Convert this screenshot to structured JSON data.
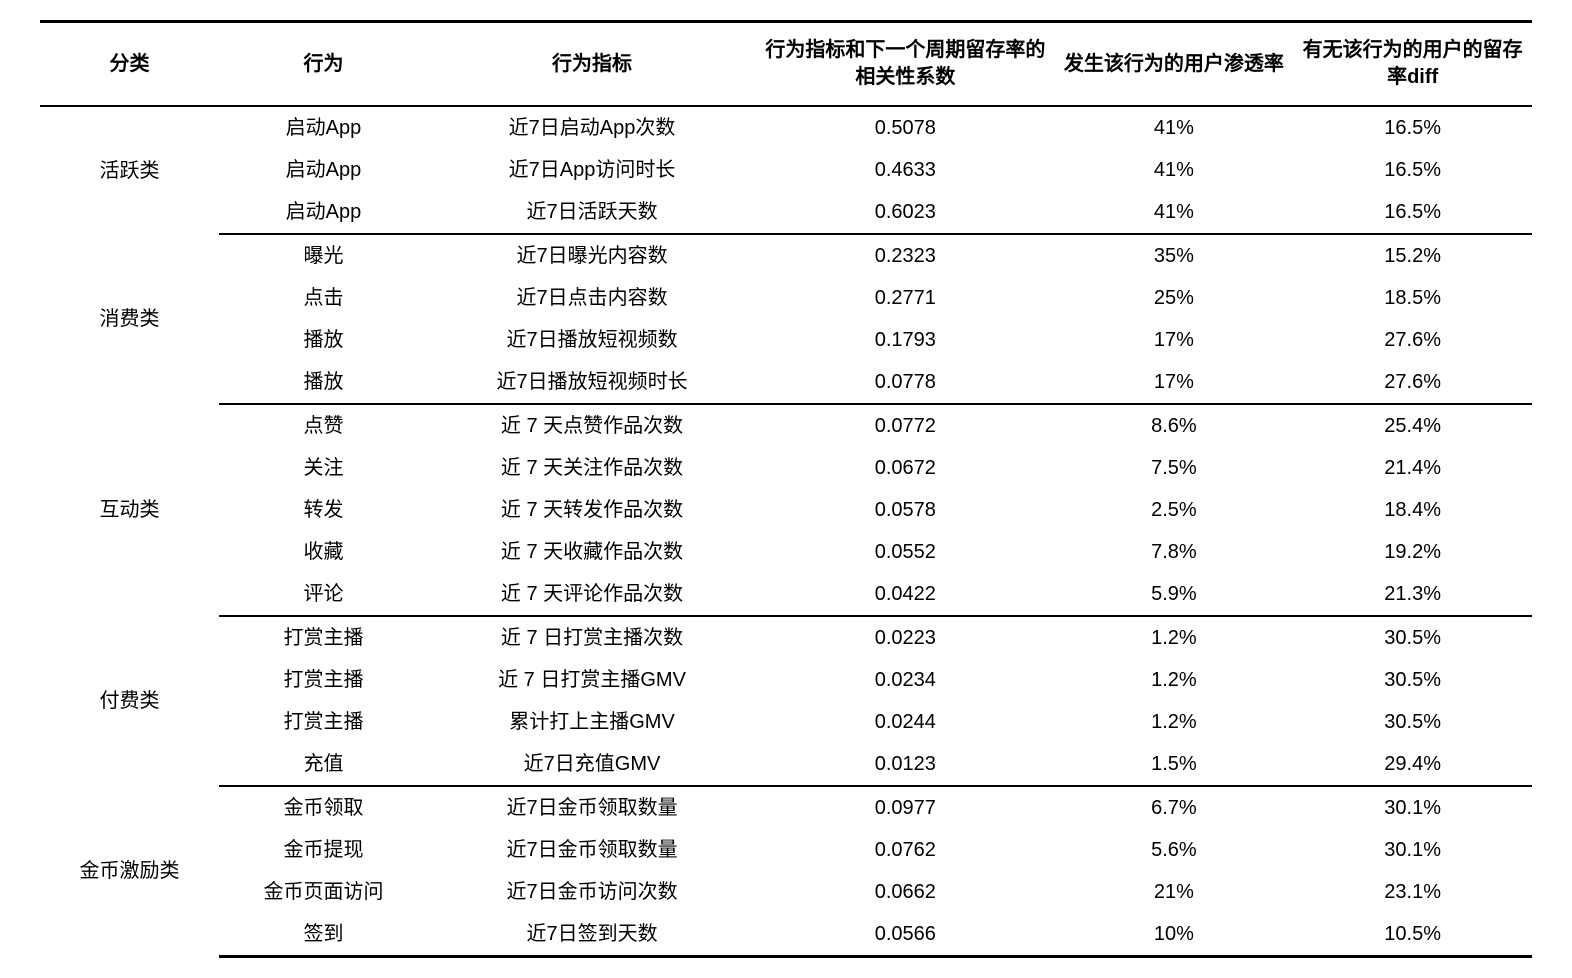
{
  "table": {
    "columns": [
      "分类",
      "行为",
      "行为指标",
      "行为指标和下一个周期留存率的相关性系数",
      "发生该行为的用户渗透率",
      "有无该行为的用户的留存率diff"
    ],
    "column_widths_pct": [
      12,
      14,
      22,
      20,
      16,
      16
    ],
    "header_fontsize_pt": 15,
    "body_fontsize_pt": 15,
    "border_color": "#000000",
    "background_color": "#ffffff",
    "text_color": "#000000",
    "groups": [
      {
        "category": "活跃类",
        "rows": [
          {
            "behavior": "启动App",
            "indicator": "近7日启动App次数",
            "corr": "0.5078",
            "penetration": "41%",
            "diff": "16.5%"
          },
          {
            "behavior": "启动App",
            "indicator": "近7日App访问时长",
            "corr": "0.4633",
            "penetration": "41%",
            "diff": "16.5%"
          },
          {
            "behavior": "启动App",
            "indicator": "近7日活跃天数",
            "corr": "0.6023",
            "penetration": "41%",
            "diff": "16.5%"
          }
        ]
      },
      {
        "category": "消费类",
        "rows": [
          {
            "behavior": "曝光",
            "indicator": "近7日曝光内容数",
            "corr": "0.2323",
            "penetration": "35%",
            "diff": "15.2%"
          },
          {
            "behavior": "点击",
            "indicator": "近7日点击内容数",
            "corr": "0.2771",
            "penetration": "25%",
            "diff": "18.5%"
          },
          {
            "behavior": "播放",
            "indicator": "近7日播放短视频数",
            "corr": "0.1793",
            "penetration": "17%",
            "diff": "27.6%"
          },
          {
            "behavior": "播放",
            "indicator": "近7日播放短视频时长",
            "corr": "0.0778",
            "penetration": "17%",
            "diff": "27.6%"
          }
        ]
      },
      {
        "category": "互动类",
        "rows": [
          {
            "behavior": "点赞",
            "indicator": "近 7 天点赞作品次数",
            "corr": "0.0772",
            "penetration": "8.6%",
            "diff": "25.4%"
          },
          {
            "behavior": "关注",
            "indicator": "近 7 天关注作品次数",
            "corr": "0.0672",
            "penetration": "7.5%",
            "diff": "21.4%"
          },
          {
            "behavior": "转发",
            "indicator": "近 7 天转发作品次数",
            "corr": "0.0578",
            "penetration": "2.5%",
            "diff": "18.4%"
          },
          {
            "behavior": "收藏",
            "indicator": "近 7 天收藏作品次数",
            "corr": "0.0552",
            "penetration": "7.8%",
            "diff": "19.2%"
          },
          {
            "behavior": "评论",
            "indicator": "近 7 天评论作品次数",
            "corr": "0.0422",
            "penetration": "5.9%",
            "diff": "21.3%"
          }
        ]
      },
      {
        "category": "付费类",
        "rows": [
          {
            "behavior": "打赏主播",
            "indicator": "近 7 日打赏主播次数",
            "corr": "0.0223",
            "penetration": "1.2%",
            "diff": "30.5%"
          },
          {
            "behavior": "打赏主播",
            "indicator": "近 7 日打赏主播GMV",
            "corr": "0.0234",
            "penetration": "1.2%",
            "diff": "30.5%"
          },
          {
            "behavior": "打赏主播",
            "indicator": "累计打上主播GMV",
            "corr": "0.0244",
            "penetration": "1.2%",
            "diff": "30.5%"
          },
          {
            "behavior": "充值",
            "indicator": "近7日充值GMV",
            "corr": "0.0123",
            "penetration": "1.5%",
            "diff": "29.4%"
          }
        ]
      },
      {
        "category": "金币激励类",
        "rows": [
          {
            "behavior": "金币领取",
            "indicator": "近7日金币领取数量",
            "corr": "0.0977",
            "penetration": "6.7%",
            "diff": "30.1%"
          },
          {
            "behavior": "金币提现",
            "indicator": "近7日金币领取数量",
            "corr": "0.0762",
            "penetration": "5.6%",
            "diff": "30.1%"
          },
          {
            "behavior": "金币页面访问",
            "indicator": "近7日金币访问次数",
            "corr": "0.0662",
            "penetration": "21%",
            "diff": "23.1%"
          },
          {
            "behavior": "签到",
            "indicator": "近7日签到天数",
            "corr": "0.0566",
            "penetration": "10%",
            "diff": "10.5%"
          }
        ]
      }
    ]
  }
}
